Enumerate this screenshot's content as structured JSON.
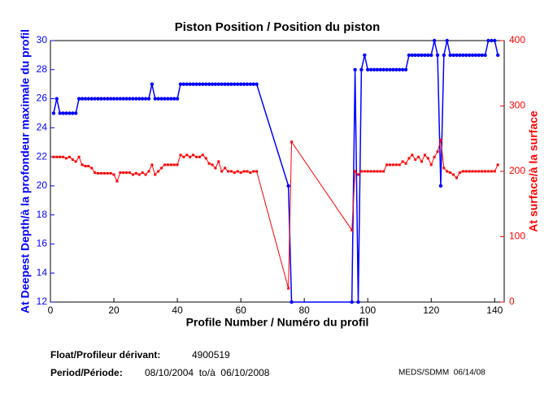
{
  "chart_data": {
    "type": "line",
    "title": "Piston Position / Position du piston",
    "xlabel": "Profile Number / Numéro du profil",
    "ylabel": "At Deepest Depth/à la profondeur maximale du profil",
    "y2label": "At surface/à la surface",
    "xlim": [
      0,
      143
    ],
    "xticks": [
      0,
      20,
      40,
      60,
      80,
      100,
      120,
      140
    ],
    "ylim": [
      12,
      30
    ],
    "yticks": [
      12,
      14,
      16,
      18,
      20,
      22,
      24,
      26,
      28,
      30
    ],
    "y2lim": [
      0,
      400
    ],
    "y2ticks": [
      0,
      100,
      200,
      300,
      400
    ],
    "grid": false,
    "x": [
      1,
      2,
      3,
      4,
      5,
      6,
      7,
      8,
      9,
      10,
      11,
      12,
      13,
      14,
      15,
      16,
      17,
      18,
      19,
      20,
      21,
      22,
      23,
      24,
      25,
      26,
      27,
      28,
      29,
      30,
      31,
      32,
      33,
      34,
      35,
      36,
      37,
      38,
      39,
      40,
      41,
      42,
      43,
      44,
      45,
      46,
      47,
      48,
      49,
      50,
      51,
      52,
      53,
      54,
      55,
      56,
      57,
      58,
      59,
      60,
      61,
      62,
      63,
      64,
      65,
      75,
      76,
      95,
      96,
      97,
      98,
      99,
      100,
      101,
      102,
      103,
      104,
      105,
      106,
      107,
      108,
      109,
      110,
      111,
      112,
      113,
      114,
      115,
      116,
      117,
      118,
      119,
      120,
      121,
      122,
      123,
      124,
      125,
      126,
      127,
      128,
      129,
      130,
      131,
      132,
      133,
      134,
      135,
      136,
      137,
      138,
      139,
      140,
      141
    ],
    "series": [
      {
        "name": "At Deepest Depth",
        "color": "#0000ff",
        "axis": "y",
        "marker": "circle",
        "values": [
          25,
          26,
          25,
          25,
          25,
          25,
          25,
          25,
          26,
          26,
          26,
          26,
          26,
          26,
          26,
          26,
          26,
          26,
          26,
          26,
          26,
          26,
          26,
          26,
          26,
          26,
          26,
          26,
          26,
          26,
          26,
          27,
          26,
          26,
          26,
          26,
          26,
          26,
          26,
          26,
          27,
          27,
          27,
          27,
          27,
          27,
          27,
          27,
          27,
          27,
          27,
          27,
          27,
          27,
          27,
          27,
          27,
          27,
          27,
          27,
          27,
          27,
          27,
          27,
          27,
          20,
          12,
          12,
          28,
          12,
          28,
          29,
          28,
          28,
          28,
          28,
          28,
          28,
          28,
          28,
          28,
          28,
          28,
          28,
          28,
          29,
          29,
          29,
          29,
          29,
          29,
          29,
          29,
          30,
          29,
          20,
          29,
          30,
          29,
          29,
          29,
          29,
          29,
          29,
          29,
          29,
          29,
          29,
          29,
          29,
          30,
          30,
          30,
          29
        ]
      },
      {
        "name": "At surface",
        "color": "#ff0000",
        "axis": "y2",
        "marker": "square",
        "values": [
          222,
          222,
          222,
          222,
          220,
          222,
          218,
          215,
          222,
          210,
          208,
          208,
          205,
          198,
          197,
          197,
          197,
          197,
          197,
          195,
          185,
          198,
          198,
          198,
          198,
          195,
          197,
          195,
          198,
          195,
          200,
          210,
          195,
          200,
          205,
          210,
          210,
          210,
          210,
          210,
          225,
          222,
          225,
          222,
          225,
          222,
          222,
          225,
          220,
          212,
          210,
          205,
          215,
          200,
          205,
          200,
          200,
          198,
          200,
          198,
          200,
          200,
          198,
          200,
          200,
          21,
          245,
          110,
          200,
          195,
          200,
          200,
          200,
          200,
          200,
          200,
          200,
          200,
          210,
          210,
          210,
          210,
          210,
          215,
          212,
          220,
          225,
          218,
          222,
          215,
          225,
          220,
          210,
          222,
          230,
          248,
          205,
          200,
          198,
          195,
          190,
          198,
          200,
          200,
          200,
          200,
          200,
          200,
          200,
          200,
          200,
          200,
          200,
          210
        ]
      }
    ],
    "footer": {
      "float_label": "Float/Profileur dérivant:",
      "float_id": "4900519",
      "period_label": "Period/Période:",
      "period": "08/10/2004  to/à  06/10/2008",
      "credit": "MEDS/SDMM  06/14/08"
    }
  }
}
